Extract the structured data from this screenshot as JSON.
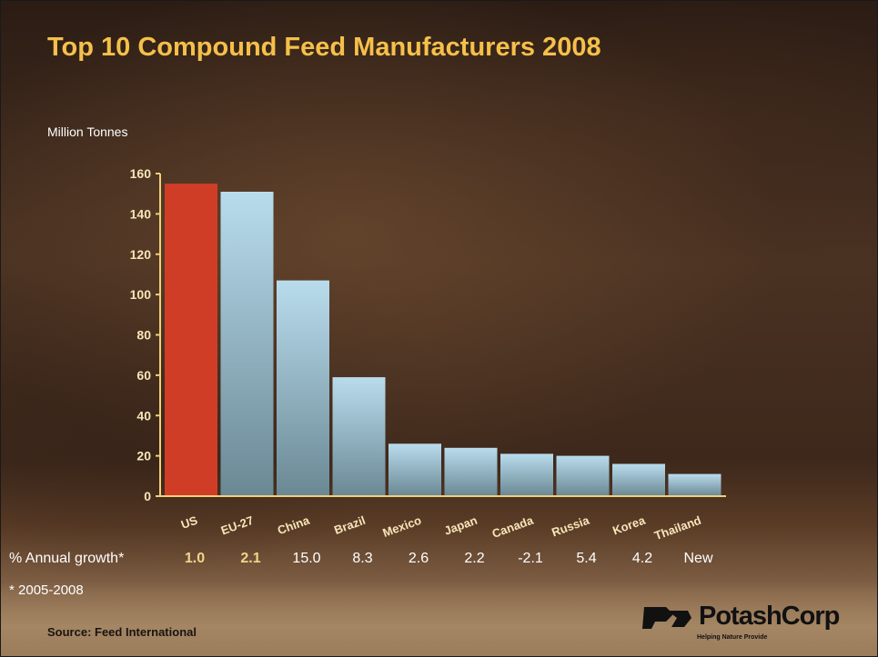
{
  "slide": {
    "title": "Top 10 Compound Feed Manufacturers 2008",
    "unit_label": "Million Tonnes",
    "growth_label": "% Annual growth*",
    "growth_values": [
      "1.0",
      "2.1",
      "15.0",
      "8.3",
      "2.6",
      "2.2",
      "-2.1",
      "5.4",
      "4.2",
      "New"
    ],
    "footnote": "* 2005-2008",
    "source": "Source: Feed International",
    "logo": {
      "name": "PotashCorp",
      "tagline": "Helping Nature Provide"
    }
  },
  "colors": {
    "title": "#f5c04a",
    "highlight_bar": "#d03d26",
    "bar_top": "#b9dced",
    "bar_bottom": "#6a8894",
    "axis": "#f0d07a"
  },
  "chart_data": {
    "type": "bar",
    "title": "Top 10 Compound Feed Manufacturers 2008",
    "ylabel": "Million Tonnes",
    "xlabel": "",
    "ylim": [
      0,
      160
    ],
    "yticks": [
      0,
      20,
      40,
      60,
      80,
      100,
      120,
      140,
      160
    ],
    "grid": false,
    "categories": [
      "US",
      "EU-27",
      "China",
      "Brazil",
      "Mexico",
      "Japan",
      "Canada",
      "Russia",
      "Korea",
      "Thailand"
    ],
    "values": [
      155,
      151,
      107,
      59,
      26,
      24,
      21,
      20,
      16,
      11
    ],
    "highlight_index": 0
  }
}
